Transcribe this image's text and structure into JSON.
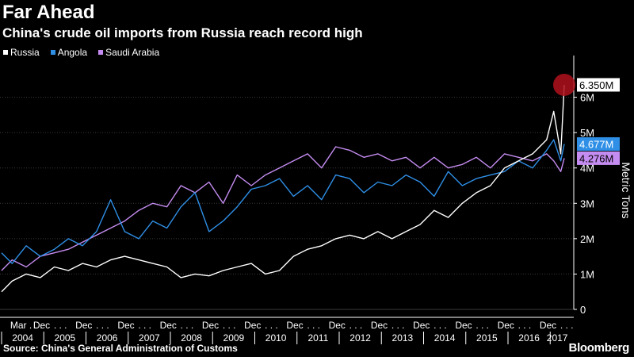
{
  "header": {
    "title": "Far Ahead",
    "subtitle": "China's crude oil imports from Russia reach record high"
  },
  "legend": [
    {
      "name": "Russia",
      "color": "#ffffff"
    },
    {
      "name": "Angola",
      "color": "#2f8fe6"
    },
    {
      "name": "Saudi Arabia",
      "color": "#c48cf0"
    }
  ],
  "footer": {
    "source": "Source: China's General Administration of Customs",
    "brand": "Bloomberg"
  },
  "chart_data": {
    "type": "line",
    "ylabel": "Metric Tons",
    "ylim": [
      0,
      7
    ],
    "y_ticks": [
      "0",
      "1M",
      "2M",
      "3M",
      "4M",
      "5M",
      "6M"
    ],
    "x_month_labels": [
      "Mar",
      "Dec",
      "Dec",
      "Dec",
      "Dec",
      "Dec",
      "Dec",
      "Dec",
      "Dec",
      "Dec",
      "Dec",
      "Dec",
      "Dec",
      "Dec"
    ],
    "x_year_labels": [
      "2004",
      "2005",
      "2006",
      "2007",
      "2008",
      "2009",
      "2010",
      "2011",
      "2012",
      "2013",
      "2014",
      "2015",
      "2016",
      "2017"
    ],
    "x_start": "2004-01",
    "x_end": "2017-05",
    "series": [
      {
        "name": "Russia",
        "color": "#ffffff",
        "points": [
          [
            "2004-01",
            0.5
          ],
          [
            "2004-04",
            0.8
          ],
          [
            "2004-08",
            1.0
          ],
          [
            "2004-12",
            0.9
          ],
          [
            "2005-04",
            1.2
          ],
          [
            "2005-08",
            1.1
          ],
          [
            "2005-12",
            1.3
          ],
          [
            "2006-04",
            1.2
          ],
          [
            "2006-08",
            1.4
          ],
          [
            "2006-12",
            1.5
          ],
          [
            "2007-04",
            1.4
          ],
          [
            "2007-08",
            1.3
          ],
          [
            "2007-12",
            1.2
          ],
          [
            "2008-04",
            0.9
          ],
          [
            "2008-08",
            1.0
          ],
          [
            "2008-12",
            0.95
          ],
          [
            "2009-04",
            1.1
          ],
          [
            "2009-08",
            1.2
          ],
          [
            "2009-12",
            1.3
          ],
          [
            "2010-04",
            1.0
          ],
          [
            "2010-08",
            1.1
          ],
          [
            "2010-12",
            1.5
          ],
          [
            "2011-04",
            1.7
          ],
          [
            "2011-08",
            1.8
          ],
          [
            "2011-12",
            2.0
          ],
          [
            "2012-04",
            2.1
          ],
          [
            "2012-08",
            2.0
          ],
          [
            "2012-12",
            2.2
          ],
          [
            "2013-04",
            2.0
          ],
          [
            "2013-08",
            2.2
          ],
          [
            "2013-12",
            2.4
          ],
          [
            "2014-04",
            2.8
          ],
          [
            "2014-08",
            2.6
          ],
          [
            "2014-12",
            3.0
          ],
          [
            "2015-04",
            3.3
          ],
          [
            "2015-08",
            3.5
          ],
          [
            "2015-12",
            4.0
          ],
          [
            "2016-04",
            4.2
          ],
          [
            "2016-08",
            4.4
          ],
          [
            "2016-12",
            4.8
          ],
          [
            "2017-02",
            5.6
          ],
          [
            "2017-04",
            4.4
          ],
          [
            "2017-05",
            6.35
          ]
        ]
      },
      {
        "name": "Angola",
        "color": "#2f8fe6",
        "points": [
          [
            "2004-01",
            1.6
          ],
          [
            "2004-04",
            1.3
          ],
          [
            "2004-08",
            1.8
          ],
          [
            "2004-12",
            1.5
          ],
          [
            "2005-04",
            1.7
          ],
          [
            "2005-08",
            2.0
          ],
          [
            "2005-12",
            1.8
          ],
          [
            "2006-04",
            2.2
          ],
          [
            "2006-08",
            3.1
          ],
          [
            "2006-12",
            2.2
          ],
          [
            "2007-04",
            2.0
          ],
          [
            "2007-08",
            2.5
          ],
          [
            "2007-12",
            2.3
          ],
          [
            "2008-04",
            2.9
          ],
          [
            "2008-08",
            3.3
          ],
          [
            "2008-12",
            2.2
          ],
          [
            "2009-04",
            2.5
          ],
          [
            "2009-08",
            2.9
          ],
          [
            "2009-12",
            3.4
          ],
          [
            "2010-04",
            3.5
          ],
          [
            "2010-08",
            3.7
          ],
          [
            "2010-12",
            3.2
          ],
          [
            "2011-04",
            3.5
          ],
          [
            "2011-08",
            3.1
          ],
          [
            "2011-12",
            3.8
          ],
          [
            "2012-04",
            3.7
          ],
          [
            "2012-08",
            3.3
          ],
          [
            "2012-12",
            3.6
          ],
          [
            "2013-04",
            3.5
          ],
          [
            "2013-08",
            3.8
          ],
          [
            "2013-12",
            3.6
          ],
          [
            "2014-04",
            3.2
          ],
          [
            "2014-08",
            3.9
          ],
          [
            "2014-12",
            3.5
          ],
          [
            "2015-04",
            3.7
          ],
          [
            "2015-08",
            3.8
          ],
          [
            "2015-12",
            3.9
          ],
          [
            "2016-04",
            4.2
          ],
          [
            "2016-08",
            4.0
          ],
          [
            "2016-12",
            4.5
          ],
          [
            "2017-02",
            4.8
          ],
          [
            "2017-04",
            4.2
          ],
          [
            "2017-05",
            4.677
          ]
        ]
      },
      {
        "name": "Saudi Arabia",
        "color": "#c48cf0",
        "points": [
          [
            "2004-01",
            1.1
          ],
          [
            "2004-04",
            1.4
          ],
          [
            "2004-08",
            1.2
          ],
          [
            "2004-12",
            1.5
          ],
          [
            "2005-04",
            1.6
          ],
          [
            "2005-08",
            1.7
          ],
          [
            "2005-12",
            1.9
          ],
          [
            "2006-04",
            2.1
          ],
          [
            "2006-08",
            2.3
          ],
          [
            "2006-12",
            2.5
          ],
          [
            "2007-04",
            2.8
          ],
          [
            "2007-08",
            3.0
          ],
          [
            "2007-12",
            2.9
          ],
          [
            "2008-04",
            3.5
          ],
          [
            "2008-08",
            3.3
          ],
          [
            "2008-12",
            3.6
          ],
          [
            "2009-04",
            3.0
          ],
          [
            "2009-08",
            3.8
          ],
          [
            "2009-12",
            3.5
          ],
          [
            "2010-04",
            3.8
          ],
          [
            "2010-08",
            4.0
          ],
          [
            "2010-12",
            4.2
          ],
          [
            "2011-04",
            4.4
          ],
          [
            "2011-08",
            4.0
          ],
          [
            "2011-12",
            4.6
          ],
          [
            "2012-04",
            4.5
          ],
          [
            "2012-08",
            4.3
          ],
          [
            "2012-12",
            4.4
          ],
          [
            "2013-04",
            4.2
          ],
          [
            "2013-08",
            4.3
          ],
          [
            "2013-12",
            4.0
          ],
          [
            "2014-04",
            4.3
          ],
          [
            "2014-08",
            4.0
          ],
          [
            "2014-12",
            4.1
          ],
          [
            "2015-04",
            4.3
          ],
          [
            "2015-08",
            4.0
          ],
          [
            "2015-12",
            4.4
          ],
          [
            "2016-04",
            4.3
          ],
          [
            "2016-08",
            4.2
          ],
          [
            "2016-12",
            4.4
          ],
          [
            "2017-02",
            4.2
          ],
          [
            "2017-04",
            3.9
          ],
          [
            "2017-05",
            4.276
          ]
        ]
      }
    ],
    "end_labels": [
      {
        "series": "Russia",
        "text": "6.350M",
        "bg": "#ffffff",
        "fg": "#000000",
        "value": 6.35
      },
      {
        "series": "Angola",
        "text": "4.677M",
        "bg": "#2f8fe6",
        "fg": "#ffffff",
        "value": 4.677
      },
      {
        "series": "Saudi Arabia",
        "text": "4.276M",
        "bg": "#c48cf0",
        "fg": "#000000",
        "value": 4.276
      }
    ],
    "highlight": {
      "series": "Russia",
      "at": "2017-05",
      "value": 6.35,
      "color": "#b0101c"
    }
  }
}
